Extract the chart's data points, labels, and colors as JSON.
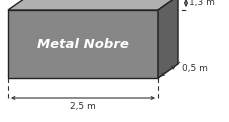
{
  "label": "Metal Nobre",
  "dim_length": "2,5 m",
  "dim_height": "1,3 m",
  "dim_depth": "0,5 m",
  "box_face_color": "#878787",
  "box_top_color": "#b0b0b0",
  "box_side_color": "#606060",
  "box_edge_color": "#222222",
  "background_color": "#ffffff",
  "label_color": "#ffffff",
  "dim_color": "#333333",
  "figsize": [
    2.3,
    1.22
  ],
  "dpi": 100
}
